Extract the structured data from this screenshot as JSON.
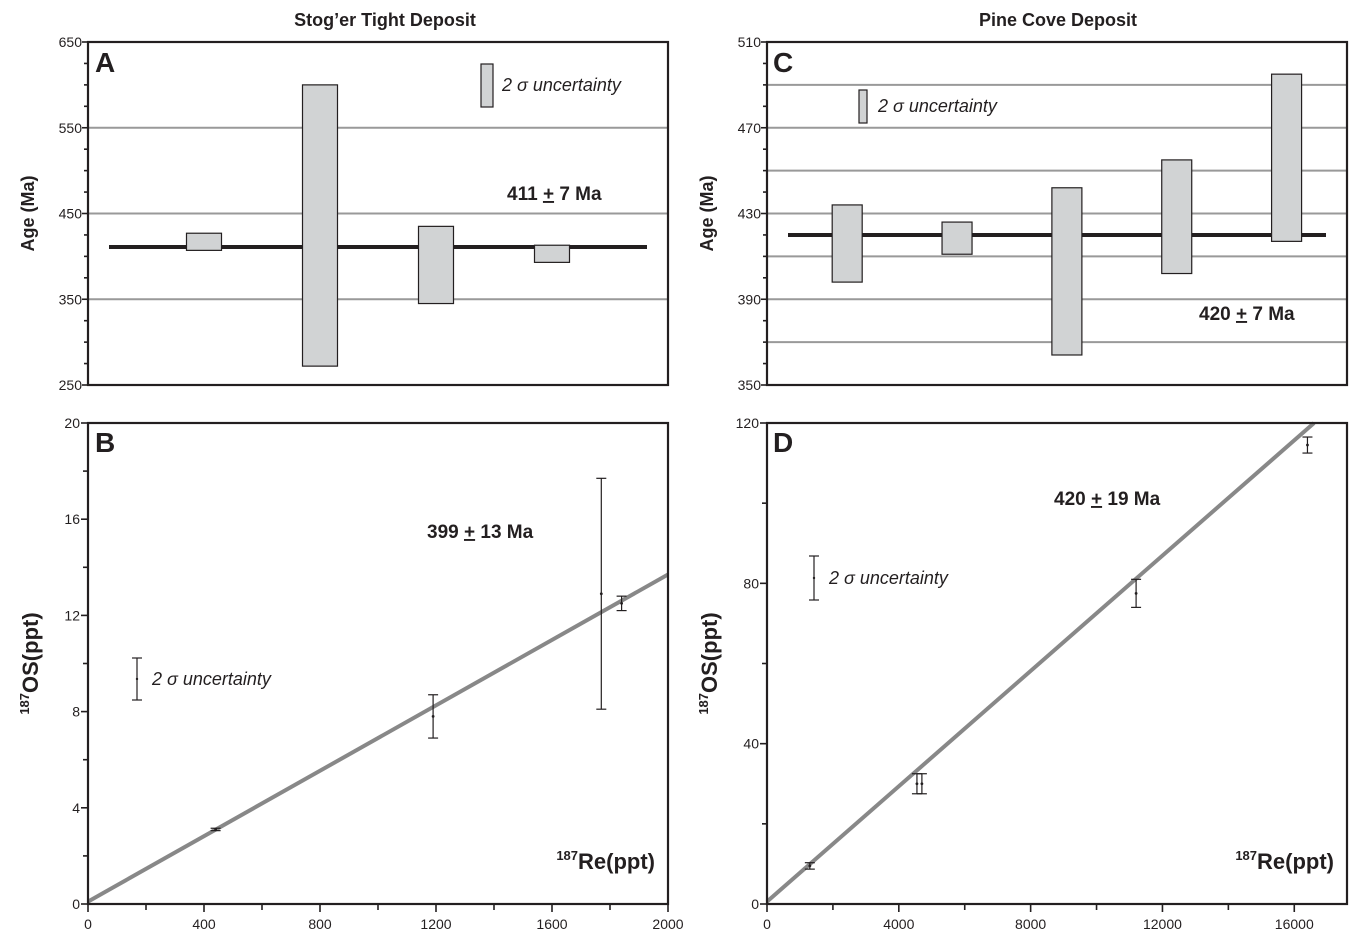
{
  "titles": {
    "left": "Stog’er Tight Deposit",
    "right": "Pine Cove Deposit"
  },
  "colors": {
    "box_fill": "#d1d3d4",
    "fit_line": "#888888",
    "gridline": "#999999",
    "ink": "#231f20"
  },
  "chart_data": [
    {
      "panel": "A",
      "type": "bar",
      "subtype": "floating-range",
      "ylabel": "Age (Ma)",
      "ylim": [
        250,
        650
      ],
      "yticks": [
        250,
        350,
        450,
        550,
        650
      ],
      "grid": true,
      "gridlines": [
        350,
        450,
        550
      ],
      "ranges": [
        {
          "x": 400,
          "low": 407,
          "high": 427
        },
        {
          "x": 800,
          "low": 272,
          "high": 600
        },
        {
          "x": 1200,
          "low": 345,
          "high": 435
        },
        {
          "x": 1600,
          "low": 393,
          "high": 413
        }
      ],
      "mean": 411,
      "mean_label": {
        "value": "411",
        "pm": "+",
        "err": "7 Ma"
      },
      "uncertainty_label": "2 σ uncertainty"
    },
    {
      "panel": "B",
      "type": "scatter",
      "xlim": [
        0,
        2000
      ],
      "xticks": [
        0,
        400,
        800,
        1200,
        1600,
        2000
      ],
      "ylim": [
        0,
        20
      ],
      "yticks": [
        0,
        4,
        8,
        12,
        16,
        20
      ],
      "ylabel": {
        "sup": "187",
        "main": "OS",
        "unit": "(ppt)"
      },
      "xlabel": {
        "sup": "187",
        "main": "Re",
        "unit": "(ppt)"
      },
      "points": [
        {
          "x": 440,
          "y": 3.1,
          "err": 0.05
        },
        {
          "x": 1190,
          "y": 7.8,
          "err": 0.9
        },
        {
          "x": 1770,
          "y": 12.9,
          "err": 4.8
        },
        {
          "x": 1840,
          "y": 12.5,
          "err": 0.3
        }
      ],
      "fit": {
        "x": [
          0,
          2000
        ],
        "y": [
          0.1,
          13.7
        ]
      },
      "age_label": {
        "value": "399",
        "pm": "+",
        "err": "13 Ma"
      },
      "uncertainty_label": "2 σ uncertainty"
    },
    {
      "panel": "C",
      "type": "bar",
      "subtype": "floating-range",
      "ylabel": "Age (Ma)",
      "ylim": [
        350,
        510
      ],
      "yticks": [
        350,
        390,
        430,
        470,
        510
      ],
      "grid": true,
      "gridlines": [
        370,
        390,
        410,
        430,
        450,
        470,
        490
      ],
      "ranges": [
        {
          "x": 1,
          "low": 398,
          "high": 434
        },
        {
          "x": 2,
          "low": 411,
          "high": 426
        },
        {
          "x": 3,
          "low": 364,
          "high": 442
        },
        {
          "x": 4,
          "low": 402,
          "high": 455
        },
        {
          "x": 5,
          "low": 417,
          "high": 495
        }
      ],
      "mean": 420,
      "mean_label": {
        "value": "420",
        "pm": "+",
        "err": "7 Ma"
      },
      "uncertainty_label": "2 σ uncertainty"
    },
    {
      "panel": "D",
      "type": "scatter",
      "xlim": [
        0,
        17600
      ],
      "xticks": [
        0,
        4000,
        8000,
        12000,
        16000
      ],
      "ylim": [
        0,
        120
      ],
      "yticks": [
        0,
        40,
        80,
        120
      ],
      "ylabel": {
        "sup": "187",
        "main": "OS",
        "unit": "(ppt)"
      },
      "xlabel": {
        "sup": "187",
        "main": "Re",
        "unit": "(ppt)"
      },
      "points": [
        {
          "x": 1300,
          "y": 9.5,
          "err": 0.8
        },
        {
          "x": 4550,
          "y": 30,
          "err": 2.5
        },
        {
          "x": 4700,
          "y": 30,
          "err": 2.5
        },
        {
          "x": 11200,
          "y": 77.5,
          "err": 3.5
        },
        {
          "x": 16400,
          "y": 114.5,
          "err": 2
        }
      ],
      "fit": {
        "x": [
          0,
          16600
        ],
        "y": [
          0.6,
          120
        ]
      },
      "age_label": {
        "value": "420",
        "pm": "+",
        "err": "19 Ma"
      },
      "uncertainty_label": "2 σ uncertainty"
    }
  ]
}
